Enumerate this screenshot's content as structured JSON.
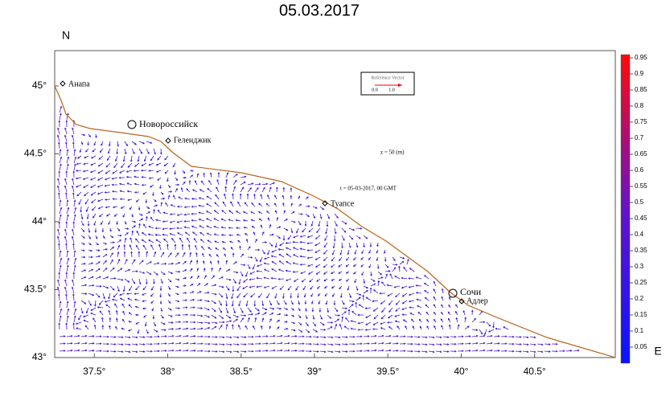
{
  "title": "05.03.2017",
  "axis_labels": {
    "y": "N",
    "x": "E"
  },
  "x_axis": {
    "lim": [
      37.23,
      41.05
    ],
    "ticks": [
      {
        "value": 37.5,
        "label": "37.5°"
      },
      {
        "value": 38,
        "label": "38°"
      },
      {
        "value": 38.5,
        "label": "38.5°"
      },
      {
        "value": 39,
        "label": "39°"
      },
      {
        "value": 39.5,
        "label": "39.5°"
      },
      {
        "value": 40,
        "label": "40°"
      },
      {
        "value": 40.5,
        "label": "40.5°"
      }
    ]
  },
  "y_axis": {
    "lim": [
      43,
      45.26
    ],
    "ticks": [
      {
        "value": 43,
        "label": "43°"
      },
      {
        "value": 43.5,
        "label": "43.5°"
      },
      {
        "value": 44,
        "label": "44°"
      },
      {
        "value": 44.5,
        "label": "44.5°"
      },
      {
        "value": 45,
        "label": "45°"
      }
    ]
  },
  "colorbar": {
    "lim": [
      0,
      0.96
    ],
    "ticks": [
      0.05,
      0.1,
      0.15,
      0.2,
      0.25,
      0.3,
      0.35,
      0.4,
      0.45,
      0.5,
      0.55,
      0.6,
      0.65,
      0.7,
      0.75,
      0.8,
      0.85,
      0.9,
      0.95
    ],
    "colors": [
      "#0a14ff",
      "#6414c8",
      "#ff0a0a"
    ]
  },
  "cities": [
    "Анапа",
    "Новороссийск",
    "Геленджик",
    "Туапсе",
    "Сочи",
    "Адлер"
  ],
  "annotations": {
    "depth": "z = 50 (m)",
    "time": "t = 05-03-2017, 00 GMT"
  },
  "reference_vector": {
    "title": "Reference Vector",
    "labels": [
      "0.0",
      "1.0"
    ]
  }
}
